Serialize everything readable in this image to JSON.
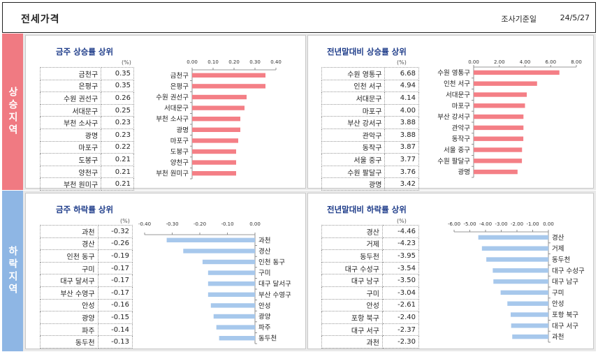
{
  "header": {
    "title": "전세가격",
    "date_label": "조사기준일",
    "date_value": "24/5/27"
  },
  "sections": {
    "up_label": "상승지역",
    "down_label": "하락지역"
  },
  "unit": "(%)",
  "colors": {
    "up_bar": "#f47f86",
    "down_bar": "#a7c8ec",
    "up_side": "#f07a82",
    "down_side": "#8eb6e4",
    "title": "#1f3d8a"
  },
  "chart_data": [
    {
      "id": "weekly_up",
      "type": "bar",
      "orientation": "horizontal",
      "title": "금주 상승률 상위",
      "categories": [
        "금천구",
        "은평구",
        "수원 권선구",
        "서대문구",
        "부천 소사구",
        "광명",
        "마포구",
        "도봉구",
        "양천구",
        "부천 원미구"
      ],
      "values": [
        0.35,
        0.35,
        0.26,
        0.25,
        0.23,
        0.23,
        0.22,
        0.21,
        0.21,
        0.21
      ],
      "labels": [
        "0.35",
        "0.35",
        "0.26",
        "0.25",
        "0.23",
        "0.23",
        "0.22",
        "0.21",
        "0.21",
        "0.21"
      ],
      "xlim": [
        0,
        0.4
      ],
      "ticks": [
        "0.00",
        "0.10",
        "0.20",
        "0.30",
        "0.40"
      ]
    },
    {
      "id": "ytd_up",
      "type": "bar",
      "orientation": "horizontal",
      "title": "전년말대비 상승률 상위",
      "categories": [
        "수원 영통구",
        "인천 서구",
        "서대문구",
        "마포구",
        "부산 강서구",
        "관악구",
        "동작구",
        "서울 중구",
        "수원 팔달구",
        "광명"
      ],
      "values": [
        6.68,
        4.94,
        4.14,
        4.0,
        3.88,
        3.88,
        3.87,
        3.77,
        3.76,
        3.42
      ],
      "labels": [
        "6.68",
        "4.94",
        "4.14",
        "4.00",
        "3.88",
        "3.88",
        "3.87",
        "3.77",
        "3.76",
        "3.42"
      ],
      "xlim": [
        0,
        8
      ],
      "ticks": [
        "0.00",
        "2.00",
        "4.00",
        "6.00",
        "8.00"
      ]
    },
    {
      "id": "weekly_down",
      "type": "bar",
      "orientation": "horizontal",
      "title": "금주 하락률 상위",
      "categories": [
        "과천",
        "경산",
        "인천 동구",
        "구미",
        "대구 달서구",
        "부산 수영구",
        "안성",
        "광양",
        "파주",
        "동두천"
      ],
      "values": [
        -0.32,
        -0.26,
        -0.19,
        -0.17,
        -0.17,
        -0.17,
        -0.16,
        -0.15,
        -0.14,
        -0.13
      ],
      "labels": [
        "-0.32",
        "-0.26",
        "-0.19",
        "-0.17",
        "-0.17",
        "-0.17",
        "-0.16",
        "-0.15",
        "-0.14",
        "-0.13"
      ],
      "xlim": [
        -0.4,
        0
      ],
      "ticks": [
        "-0.40",
        "-0.30",
        "-0.20",
        "-0.10",
        "0.00"
      ]
    },
    {
      "id": "ytd_down",
      "type": "bar",
      "orientation": "horizontal",
      "title": "전년말대비 하락률 상위",
      "categories": [
        "경산",
        "거제",
        "동두천",
        "대구 수성구",
        "대구 남구",
        "구미",
        "안성",
        "포항 북구",
        "대구 서구",
        "과천"
      ],
      "values": [
        -4.46,
        -4.23,
        -3.95,
        -3.54,
        -3.5,
        -3.04,
        -2.61,
        -2.4,
        -2.37,
        -2.3
      ],
      "labels": [
        "-4.46",
        "-4.23",
        "-3.95",
        "-3.54",
        "-3.50",
        "-3.04",
        "-2.61",
        "-2.40",
        "-2.37",
        "-2.30"
      ],
      "xlim": [
        -6,
        0
      ],
      "ticks": [
        "-6.00",
        "-5.00",
        "-4.00",
        "-3.00",
        "-2.00",
        "-1.00",
        "0.00"
      ]
    }
  ]
}
